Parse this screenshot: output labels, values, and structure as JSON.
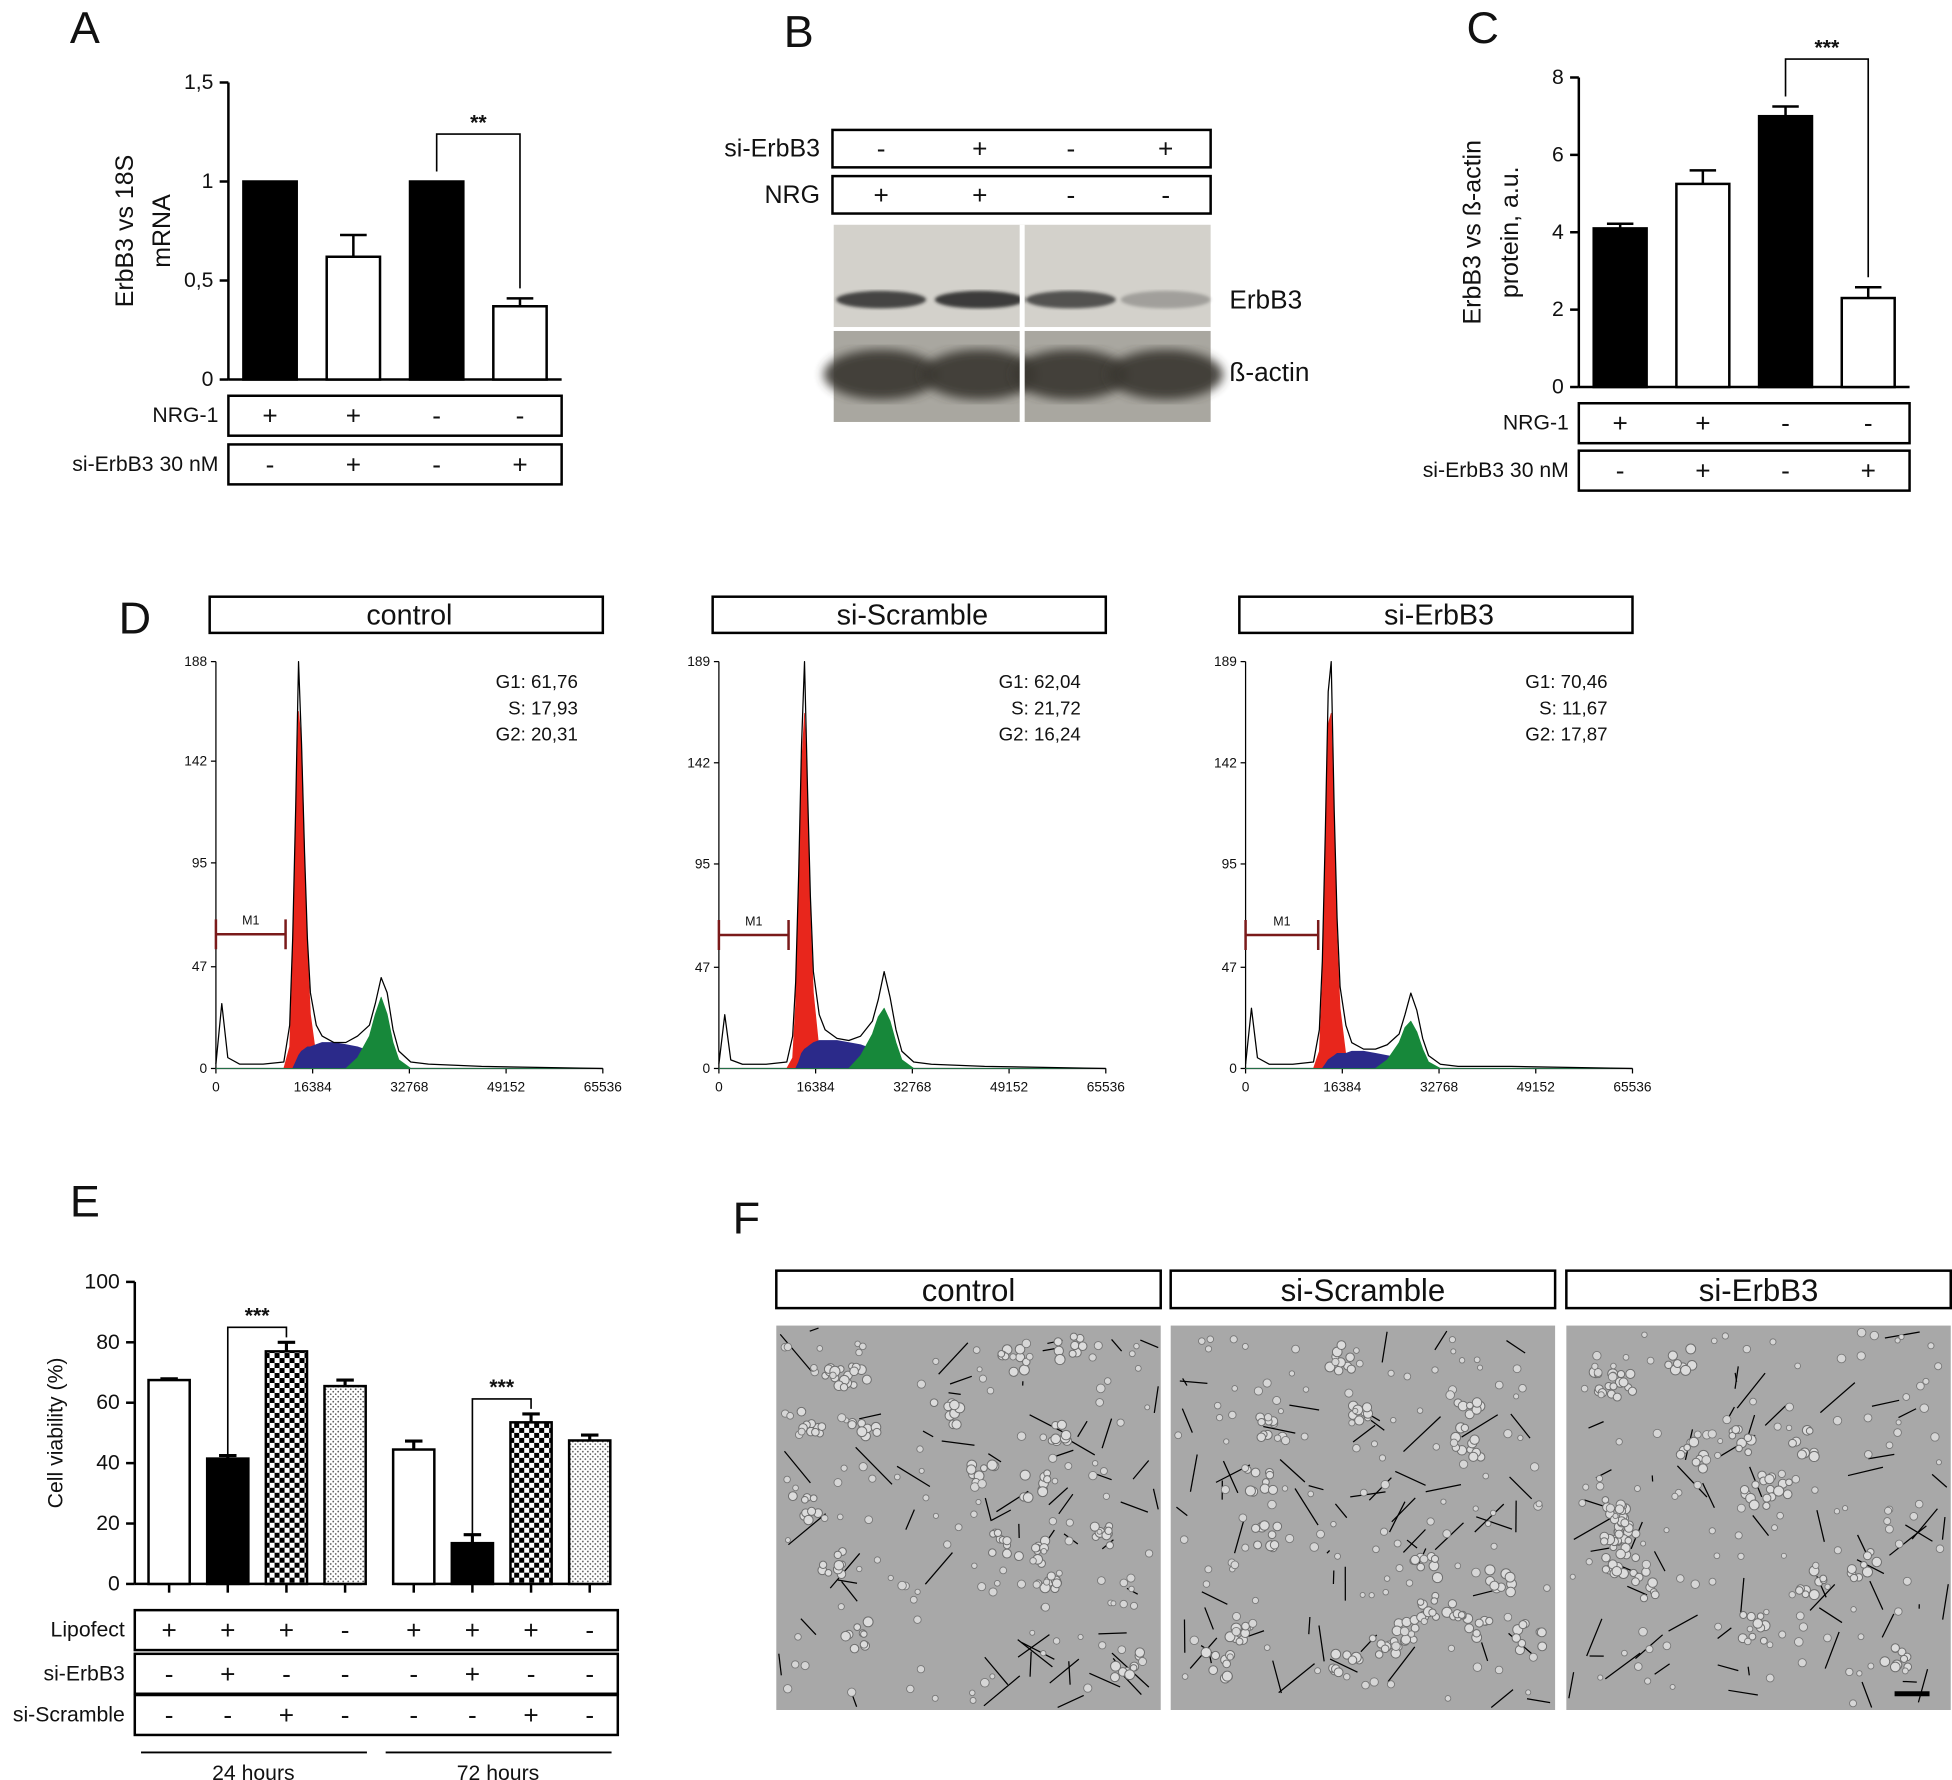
{
  "chart_data": [
    {
      "panel": "A",
      "type": "bar",
      "ylabel": [
        "ErbB3 vs 18S",
        "mRNA"
      ],
      "values": [
        1,
        0.62,
        1,
        0.37
      ],
      "errors": [
        null,
        0.11,
        null,
        0.04
      ],
      "colors": [
        "#000000",
        "#ffffff",
        "#000000",
        "#ffffff"
      ],
      "ylim": [
        0,
        1.5
      ],
      "yticks": [
        0,
        {
          "value": 0.5,
          "label": "0,5"
        },
        1,
        {
          "value": 1.5,
          "label": "1,5"
        }
      ],
      "conditions": [
        {
          "name": "NRG-1",
          "values": [
            "+",
            "+",
            "-",
            "-"
          ]
        },
        {
          "name": "si-ErbB3 30 nM",
          "values": [
            "-",
            "+",
            "-",
            "+"
          ]
        }
      ],
      "significance": [
        {
          "label": "**",
          "bars": [
            2,
            3
          ]
        }
      ]
    },
    {
      "panel": "C",
      "type": "bar",
      "ylabel": [
        "ErbB3 vs ß-actin",
        "protein, a.u."
      ],
      "values": [
        4.1,
        5.25,
        7,
        2.3
      ],
      "errors": [
        0.12,
        0.35,
        0.25,
        0.28
      ],
      "colors": [
        "#000000",
        "#ffffff",
        "#000000",
        "#ffffff"
      ],
      "ylim": [
        0,
        8
      ],
      "yticks": [
        0,
        2,
        4,
        6,
        8
      ],
      "conditions": [
        {
          "name": "NRG-1",
          "values": [
            "+",
            "+",
            "-",
            "-"
          ]
        },
        {
          "name": "si-ErbB3 30 nM",
          "values": [
            "-",
            "+",
            "-",
            "+"
          ]
        }
      ],
      "significance": [
        {
          "label": "***",
          "bars": [
            2,
            3
          ]
        }
      ]
    },
    {
      "panel": "D",
      "type": "line",
      "title": "control",
      "xlim": [
        0,
        65536
      ],
      "xticks": [
        0,
        16384,
        32768,
        49152,
        65536
      ],
      "ylim": [
        0,
        188
      ],
      "yticks": [
        0,
        47,
        95,
        142,
        188
      ],
      "stats": [
        "G1: 61,76",
        "S: 17,93",
        "G2: 20,31"
      ],
      "marker": {
        "label": "M1",
        "x": [
          0,
          11800
        ],
        "y": 62,
        "color": "#7a1a1a"
      },
      "x": [
        0,
        1000,
        2000,
        4000,
        8000,
        11500,
        12500,
        13000,
        13500,
        14000,
        14500,
        15000,
        15500,
        16000,
        17000,
        18000,
        20000,
        22000,
        24000,
        26000,
        27000,
        28000,
        29000,
        30000,
        31000,
        33000,
        36000,
        45000,
        65536
      ],
      "series": [
        {
          "color": "#e8261c",
          "fill": true,
          "values": [
            0,
            0,
            0,
            0,
            0,
            0,
            10,
            50,
            110,
            165,
            150,
            100,
            55,
            25,
            5,
            0,
            0,
            0,
            0,
            0,
            0,
            0,
            0,
            0,
            0,
            0,
            0,
            0,
            0
          ]
        },
        {
          "color": "#2b2a8a",
          "fill": true,
          "values": [
            0,
            0,
            0,
            0,
            0,
            0,
            0,
            0,
            3,
            6,
            8,
            9,
            10,
            10,
            11,
            12,
            12,
            11,
            10,
            8,
            6,
            4,
            2,
            0,
            0,
            0,
            0,
            0,
            0
          ]
        },
        {
          "color": "#17883a",
          "fill": true,
          "values": [
            0,
            0,
            0,
            0,
            0,
            0,
            0,
            0,
            0,
            0,
            0,
            0,
            0,
            0,
            0,
            0,
            0,
            0,
            5,
            15,
            25,
            33,
            25,
            12,
            4,
            0,
            0,
            0,
            0
          ]
        },
        {
          "color": "#000000",
          "values": [
            2,
            30,
            5,
            2,
            2,
            3,
            20,
            60,
            120,
            188,
            150,
            100,
            60,
            35,
            20,
            15,
            12,
            12,
            15,
            20,
            30,
            42,
            35,
            18,
            8,
            3,
            2,
            1,
            0
          ]
        }
      ]
    },
    {
      "type": "line",
      "title": "si-Scramble",
      "xlim": [
        0,
        65536
      ],
      "xticks": [
        0,
        16384,
        32768,
        49152,
        65536
      ],
      "ylim": [
        0,
        189
      ],
      "yticks": [
        0,
        47,
        95,
        142,
        189
      ],
      "stats": [
        "G1: 62,04",
        "S: 21,72",
        "G2: 16,24"
      ],
      "marker": {
        "label": "M1",
        "x": [
          0,
          11800
        ],
        "y": 62,
        "color": "#7a1a1a"
      },
      "x": [
        0,
        1000,
        2000,
        4000,
        8000,
        11500,
        12500,
        13000,
        13500,
        14000,
        14500,
        15000,
        15500,
        16000,
        17000,
        18000,
        20000,
        22000,
        24000,
        26000,
        27000,
        28000,
        29000,
        30000,
        31000,
        33000,
        36000,
        45000,
        65536
      ],
      "series": [
        {
          "color": "#e8261c",
          "fill": true,
          "values": [
            0,
            0,
            0,
            0,
            0,
            0,
            5,
            30,
            85,
            140,
            165,
            125,
            70,
            35,
            8,
            0,
            0,
            0,
            0,
            0,
            0,
            0,
            0,
            0,
            0,
            0,
            0,
            0,
            0
          ]
        },
        {
          "color": "#2b2a8a",
          "fill": true,
          "values": [
            0,
            0,
            0,
            0,
            0,
            0,
            0,
            0,
            3,
            7,
            9,
            10,
            11,
            12,
            13,
            13,
            13,
            12,
            11,
            9,
            7,
            5,
            2,
            0,
            0,
            0,
            0,
            0,
            0
          ]
        },
        {
          "color": "#17883a",
          "fill": true,
          "values": [
            0,
            0,
            0,
            0,
            0,
            0,
            0,
            0,
            0,
            0,
            0,
            0,
            0,
            0,
            0,
            0,
            0,
            0,
            6,
            16,
            24,
            28,
            22,
            12,
            4,
            0,
            0,
            0,
            0
          ]
        },
        {
          "color": "#000000",
          "values": [
            2,
            25,
            4,
            2,
            2,
            3,
            15,
            40,
            90,
            150,
            189,
            130,
            80,
            45,
            25,
            18,
            14,
            13,
            15,
            22,
            32,
            45,
            33,
            18,
            8,
            3,
            2,
            1,
            0
          ]
        }
      ]
    },
    {
      "type": "line",
      "title": "si-ErbB3",
      "xlim": [
        0,
        65536
      ],
      "xticks": [
        0,
        16384,
        32768,
        49152,
        65536
      ],
      "ylim": [
        0,
        189
      ],
      "yticks": [
        0,
        47,
        95,
        142,
        189
      ],
      "stats": [
        "G1: 70,46",
        "S: 11,67",
        "G2: 17,87"
      ],
      "marker": {
        "label": "M1",
        "x": [
          0,
          12300
        ],
        "y": 62,
        "color": "#7a1a1a"
      },
      "x": [
        0,
        1000,
        2000,
        4000,
        8000,
        11500,
        12500,
        13000,
        13500,
        14000,
        14500,
        15000,
        15500,
        16000,
        17000,
        18000,
        20000,
        22000,
        24000,
        26000,
        27000,
        28000,
        29000,
        30000,
        31000,
        33000,
        36000,
        45000,
        65536
      ],
      "series": [
        {
          "color": "#e8261c",
          "fill": true,
          "values": [
            0,
            0,
            0,
            0,
            0,
            0,
            8,
            40,
            100,
            160,
            165,
            110,
            60,
            28,
            6,
            0,
            0,
            0,
            0,
            0,
            0,
            0,
            0,
            0,
            0,
            0,
            0,
            0,
            0
          ]
        },
        {
          "color": "#2b2a8a",
          "fill": true,
          "values": [
            0,
            0,
            0,
            0,
            0,
            0,
            0,
            0,
            2,
            4,
            5,
            6,
            7,
            7,
            7,
            8,
            8,
            7,
            6,
            5,
            4,
            3,
            1,
            0,
            0,
            0,
            0,
            0,
            0
          ]
        },
        {
          "color": "#17883a",
          "fill": true,
          "values": [
            0,
            0,
            0,
            0,
            0,
            0,
            0,
            0,
            0,
            0,
            0,
            0,
            0,
            0,
            0,
            0,
            0,
            0,
            4,
            12,
            19,
            22,
            17,
            9,
            3,
            0,
            0,
            0,
            0
          ]
        },
        {
          "color": "#000000",
          "values": [
            2,
            28,
            5,
            2,
            2,
            3,
            18,
            50,
            110,
            175,
            189,
            120,
            70,
            38,
            20,
            12,
            9,
            9,
            11,
            16,
            25,
            35,
            27,
            14,
            6,
            2,
            1,
            1,
            0
          ]
        }
      ]
    },
    {
      "panel": "E",
      "type": "grouped_bar",
      "ylabel": "Cell viability (%)",
      "groups": [
        "24 hours",
        "72 hours"
      ],
      "series": [
        {
          "color": "#ffffff",
          "values": [
            67.5,
            44.5
          ],
          "errors": [
            0.4,
            2.8
          ]
        },
        {
          "color": "#000000",
          "values": [
            41.5,
            13.5
          ],
          "errors": [
            1,
            2.8
          ]
        },
        {
          "color": "#ffffff",
          "pattern": "checker",
          "values": [
            77,
            53.5
          ],
          "errors": [
            3,
            2.8
          ]
        },
        {
          "color": "#ffffff",
          "pattern": "dots",
          "values": [
            65.5,
            47.5
          ],
          "errors": [
            2,
            1.8
          ]
        }
      ],
      "ylim": [
        0,
        100
      ],
      "yticks": [
        0,
        20,
        40,
        60,
        80,
        100
      ],
      "conditions": [
        {
          "name": "Lipofect",
          "values": [
            "+",
            "+",
            "+",
            "-",
            "+",
            "+",
            "+",
            "-"
          ]
        },
        {
          "name": "si-ErbB3",
          "values": [
            "-",
            "+",
            "-",
            "-",
            "-",
            "+",
            "-",
            "-"
          ]
        },
        {
          "name": "si-Scramble",
          "values": [
            "-",
            "-",
            "+",
            "-",
            "-",
            "-",
            "+",
            "-"
          ]
        }
      ],
      "significance": [
        {
          "label": "***",
          "group": 0,
          "bars": [
            1,
            2
          ]
        },
        {
          "label": "***",
          "group": 1,
          "bars": [
            1,
            2
          ]
        }
      ]
    }
  ],
  "blot": {
    "panel": "B",
    "conditions": [
      {
        "name": "si-ErbB3",
        "values": [
          "-",
          "+",
          "-",
          "+"
        ]
      },
      {
        "name": "NRG",
        "values": [
          "+",
          "+",
          "-",
          "-"
        ]
      }
    ],
    "bands": [
      "ErbB3",
      "ß-actin"
    ]
  },
  "micrographs": {
    "panel": "F",
    "titles": [
      "control",
      "si-Scramble",
      "si-ErbB3"
    ]
  }
}
